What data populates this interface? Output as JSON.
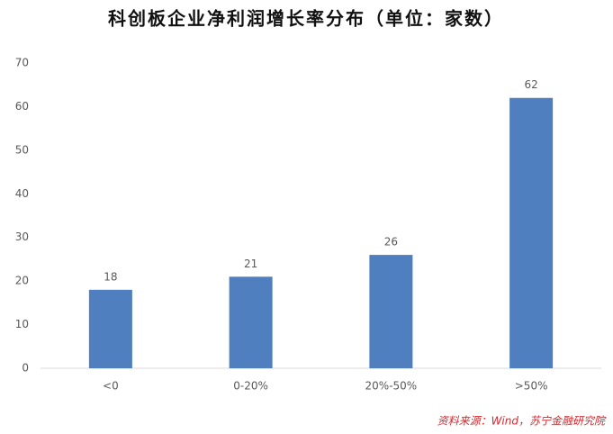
{
  "chart_data": {
    "type": "bar",
    "title": "科创板企业净利润增长率分布（单位：家数）",
    "categories": [
      "<0",
      "0-20%",
      "20%-50%",
      ">50%"
    ],
    "values": [
      18,
      21,
      26,
      62
    ],
    "color": "#4f7fbe",
    "ylim": [
      0,
      70
    ],
    "yticks": [
      0,
      10,
      20,
      30,
      40,
      50,
      60,
      70
    ],
    "grid": false,
    "source": "资料来源：Wind，苏宁金融研究院"
  }
}
